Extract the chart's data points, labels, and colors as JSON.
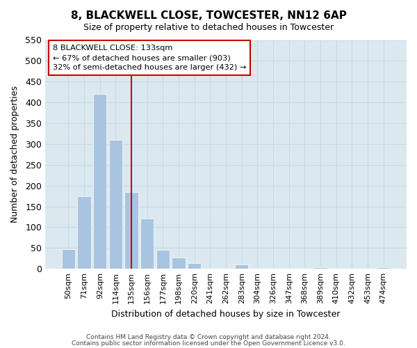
{
  "title": "8, BLACKWELL CLOSE, TOWCESTER, NN12 6AP",
  "subtitle": "Size of property relative to detached houses in Towcester",
  "xlabel": "Distribution of detached houses by size in Towcester",
  "ylabel": "Number of detached properties",
  "bar_labels": [
    "50sqm",
    "71sqm",
    "92sqm",
    "114sqm",
    "135sqm",
    "156sqm",
    "177sqm",
    "198sqm",
    "220sqm",
    "241sqm",
    "262sqm",
    "283sqm",
    "304sqm",
    "326sqm",
    "347sqm",
    "368sqm",
    "389sqm",
    "410sqm",
    "432sqm",
    "453sqm",
    "474sqm"
  ],
  "bar_values": [
    47,
    175,
    420,
    310,
    184,
    120,
    46,
    27,
    13,
    0,
    0,
    10,
    0,
    0,
    0,
    0,
    4,
    0,
    0,
    0,
    3
  ],
  "bar_color": "#a8c4e0",
  "bar_edge_color": "#ffffff",
  "vline_index": 4,
  "vline_color": "#cc0000",
  "ylim": [
    0,
    550
  ],
  "yticks": [
    0,
    50,
    100,
    150,
    200,
    250,
    300,
    350,
    400,
    450,
    500,
    550
  ],
  "annotation_title": "8 BLACKWELL CLOSE: 133sqm",
  "annotation_line1": "← 67% of detached houses are smaller (903)",
  "annotation_line2": "32% of semi-detached houses are larger (432) →",
  "annotation_box_color": "#ffffff",
  "annotation_box_edge": "#cc0000",
  "grid_color": "#c8d8e8",
  "background_color": "#dce8f0",
  "footer_line1": "Contains HM Land Registry data © Crown copyright and database right 2024.",
  "footer_line2": "Contains public sector information licensed under the Open Government Licence v3.0."
}
